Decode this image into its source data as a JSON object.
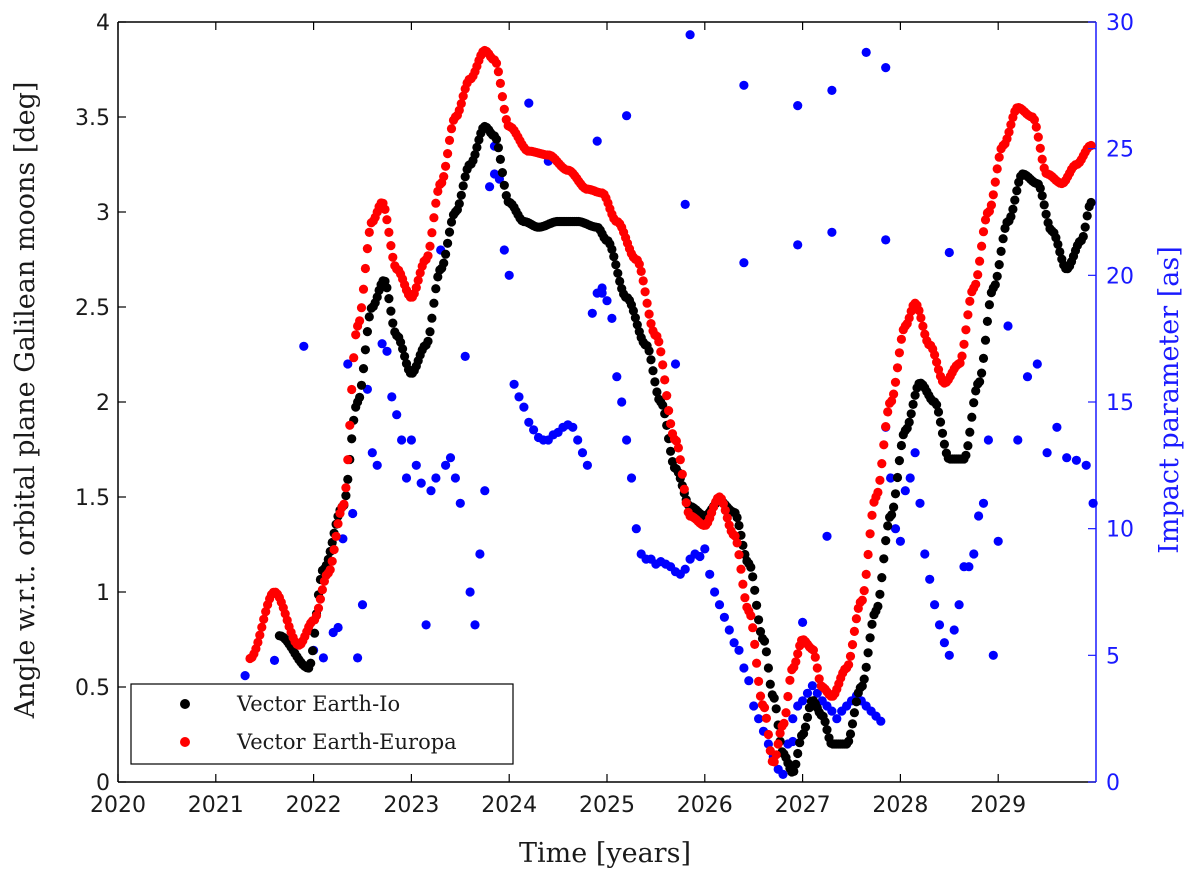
{
  "chart_data": {
    "type": "scatter",
    "xlabel": "Time [years]",
    "ylabel_left": "Angle w.r.t. orbital plane Galilean moons [deg]",
    "ylabel_right": "Impact parameter [as]",
    "xlim": [
      2020,
      2030
    ],
    "ylim_left": [
      0,
      4
    ],
    "ylim_right": [
      0,
      30
    ],
    "x_ticks": [
      "2020",
      "2021",
      "2022",
      "2023",
      "2024",
      "2025",
      "2026",
      "2027",
      "2028",
      "2029"
    ],
    "y_ticks_left": [
      "0",
      "0.5",
      "1",
      "1.5",
      "2",
      "2.5",
      "3",
      "3.5",
      "4"
    ],
    "y_ticks_right": [
      "0",
      "5",
      "10",
      "15",
      "20",
      "25",
      "30"
    ],
    "grid": false,
    "legend_position": "bottom-left",
    "colors": {
      "io": "#000000",
      "europa": "#ff0000",
      "impact": "#0000ff",
      "right_axis": "#1a1aff"
    },
    "series": [
      {
        "name": "Vector Earth-Io",
        "axis": "left",
        "color": "#000000",
        "curve_x": [
          2021.65,
          2021.95,
          2022.1,
          2022.3,
          2022.45,
          2022.6,
          2022.72,
          2022.85,
          2023.0,
          2023.15,
          2023.3,
          2023.45,
          2023.6,
          2023.75,
          2023.85,
          2024.0,
          2024.15,
          2024.3,
          2024.5,
          2024.7,
          2024.9,
          2025.0,
          2025.2,
          2025.4,
          2025.55,
          2025.7,
          2025.85,
          2026.0,
          2026.15,
          2026.3,
          2026.45,
          2026.6,
          2026.7,
          2026.8,
          2026.9,
          2027.0,
          2027.1,
          2027.2,
          2027.3,
          2027.45,
          2027.6,
          2027.75,
          2027.9,
          2028.05,
          2028.2,
          2028.35,
          2028.5,
          2028.65,
          2028.8,
          2028.95,
          2029.1,
          2029.25,
          2029.4,
          2029.55,
          2029.7,
          2029.85,
          2029.95
        ],
        "curve_y": [
          0.77,
          0.6,
          1.12,
          1.45,
          2.0,
          2.5,
          2.64,
          2.35,
          2.15,
          2.3,
          2.7,
          3.0,
          3.25,
          3.45,
          3.4,
          3.05,
          2.95,
          2.92,
          2.95,
          2.95,
          2.92,
          2.85,
          2.55,
          2.3,
          2.0,
          1.65,
          1.45,
          1.4,
          1.48,
          1.42,
          1.15,
          0.75,
          0.45,
          0.15,
          0.05,
          0.25,
          0.43,
          0.35,
          0.2,
          0.2,
          0.5,
          0.9,
          1.4,
          1.85,
          2.1,
          2.0,
          1.7,
          1.7,
          2.1,
          2.6,
          2.95,
          3.2,
          3.15,
          2.9,
          2.7,
          2.85,
          3.05
        ],
        "sample_step": 0.02
      },
      {
        "name": "Vector Earth-Europa",
        "axis": "left",
        "color": "#ff0000",
        "curve_x": [
          2021.35,
          2021.6,
          2021.85,
          2022.0,
          2022.15,
          2022.3,
          2022.45,
          2022.6,
          2022.7,
          2022.85,
          2023.0,
          2023.15,
          2023.3,
          2023.45,
          2023.6,
          2023.75,
          2023.85,
          2024.0,
          2024.2,
          2024.4,
          2024.6,
          2024.8,
          2024.95,
          2025.1,
          2025.3,
          2025.5,
          2025.7,
          2025.85,
          2026.0,
          2026.15,
          2026.3,
          2026.45,
          2026.6,
          2026.7,
          2026.8,
          2026.9,
          2027.0,
          2027.1,
          2027.2,
          2027.3,
          2027.45,
          2027.6,
          2027.75,
          2027.9,
          2028.05,
          2028.15,
          2028.3,
          2028.45,
          2028.6,
          2028.75,
          2028.9,
          2029.05,
          2029.2,
          2029.35,
          2029.5,
          2029.65,
          2029.8,
          2029.95
        ],
        "curve_y": [
          0.65,
          1.0,
          0.72,
          0.85,
          1.1,
          1.45,
          2.4,
          2.95,
          3.05,
          2.7,
          2.55,
          2.75,
          3.15,
          3.5,
          3.7,
          3.85,
          3.8,
          3.45,
          3.32,
          3.3,
          3.22,
          3.12,
          3.1,
          2.95,
          2.75,
          2.35,
          1.8,
          1.4,
          1.35,
          1.5,
          1.3,
          0.9,
          0.4,
          0.1,
          0.3,
          0.6,
          0.75,
          0.7,
          0.5,
          0.45,
          0.6,
          0.95,
          1.5,
          2.0,
          2.4,
          2.52,
          2.3,
          2.1,
          2.2,
          2.6,
          3.0,
          3.35,
          3.55,
          3.5,
          3.2,
          3.15,
          3.25,
          3.35
        ],
        "sample_step": 0.02
      },
      {
        "name": "Impact parameter",
        "axis": "right",
        "color": "#0000ff",
        "points": [
          [
            2021.3,
            4.2
          ],
          [
            2021.6,
            4.8
          ],
          [
            2021.9,
            17.2
          ],
          [
            2022.0,
            5.2
          ],
          [
            2022.1,
            4.9
          ],
          [
            2022.2,
            5.9
          ],
          [
            2022.25,
            6.1
          ],
          [
            2022.3,
            9.6
          ],
          [
            2022.35,
            16.5
          ],
          [
            2022.4,
            10.6
          ],
          [
            2022.45,
            4.9
          ],
          [
            2022.5,
            7.0
          ],
          [
            2022.55,
            15.5
          ],
          [
            2022.6,
            13.0
          ],
          [
            2022.65,
            12.5
          ],
          [
            2022.7,
            17.3
          ],
          [
            2022.75,
            17.0
          ],
          [
            2022.8,
            15.2
          ],
          [
            2022.85,
            14.5
          ],
          [
            2022.9,
            13.5
          ],
          [
            2022.95,
            12.0
          ],
          [
            2023.0,
            13.5
          ],
          [
            2023.05,
            12.5
          ],
          [
            2023.1,
            11.8
          ],
          [
            2023.15,
            6.2
          ],
          [
            2023.2,
            11.5
          ],
          [
            2023.25,
            12.0
          ],
          [
            2023.3,
            21.0
          ],
          [
            2023.35,
            12.5
          ],
          [
            2023.4,
            12.8
          ],
          [
            2023.45,
            12.0
          ],
          [
            2023.5,
            11.0
          ],
          [
            2023.55,
            16.8
          ],
          [
            2023.6,
            7.5
          ],
          [
            2023.65,
            6.2
          ],
          [
            2023.7,
            9.0
          ],
          [
            2023.75,
            11.5
          ],
          [
            2023.8,
            23.5
          ],
          [
            2023.85,
            24.0
          ],
          [
            2023.9,
            23.8
          ],
          [
            2023.95,
            21.0
          ],
          [
            2024.0,
            20.0
          ],
          [
            2024.05,
            15.7
          ],
          [
            2024.1,
            15.2
          ],
          [
            2024.15,
            14.8
          ],
          [
            2024.2,
            14.2
          ],
          [
            2024.25,
            13.9
          ],
          [
            2024.3,
            13.6
          ],
          [
            2024.35,
            13.5
          ],
          [
            2024.4,
            13.5
          ],
          [
            2024.45,
            13.7
          ],
          [
            2024.5,
            13.8
          ],
          [
            2024.55,
            14.0
          ],
          [
            2024.6,
            14.1
          ],
          [
            2024.65,
            14.0
          ],
          [
            2024.7,
            13.5
          ],
          [
            2024.75,
            13.0
          ],
          [
            2024.8,
            12.5
          ],
          [
            2024.85,
            18.5
          ],
          [
            2024.9,
            19.3
          ],
          [
            2024.95,
            19.5
          ],
          [
            2025.0,
            19.0
          ],
          [
            2025.05,
            18.3
          ],
          [
            2025.1,
            16.0
          ],
          [
            2025.15,
            15.0
          ],
          [
            2025.2,
            13.5
          ],
          [
            2025.25,
            12.0
          ],
          [
            2025.3,
            10.0
          ],
          [
            2025.35,
            9.0
          ],
          [
            2025.4,
            8.8
          ],
          [
            2025.45,
            8.8
          ],
          [
            2025.5,
            8.6
          ],
          [
            2025.55,
            8.7
          ],
          [
            2025.6,
            8.6
          ],
          [
            2025.65,
            8.5
          ],
          [
            2025.7,
            8.3
          ],
          [
            2025.75,
            8.2
          ],
          [
            2025.8,
            8.4
          ],
          [
            2025.85,
            8.8
          ],
          [
            2025.9,
            9.0
          ],
          [
            2025.95,
            8.9
          ],
          [
            2026.0,
            9.2
          ],
          [
            2026.05,
            8.2
          ],
          [
            2026.1,
            7.5
          ],
          [
            2026.15,
            7.0
          ],
          [
            2026.2,
            6.5
          ],
          [
            2026.25,
            6.0
          ],
          [
            2026.3,
            5.5
          ],
          [
            2026.35,
            5.2
          ],
          [
            2026.4,
            4.5
          ],
          [
            2026.45,
            4.0
          ],
          [
            2026.5,
            3.0
          ],
          [
            2026.55,
            2.5
          ],
          [
            2026.6,
            2.0
          ],
          [
            2026.65,
            1.5
          ],
          [
            2026.7,
            1.0
          ],
          [
            2026.75,
            0.5
          ],
          [
            2026.8,
            0.3
          ],
          [
            2026.85,
            1.5
          ],
          [
            2026.9,
            2.5
          ],
          [
            2026.95,
            3.0
          ],
          [
            2027.0,
            3.2
          ],
          [
            2027.05,
            3.5
          ],
          [
            2027.1,
            3.8
          ],
          [
            2027.15,
            3.5
          ],
          [
            2027.2,
            3.2
          ],
          [
            2027.25,
            3.0
          ],
          [
            2027.3,
            2.8
          ],
          [
            2027.35,
            2.5
          ],
          [
            2027.4,
            2.8
          ],
          [
            2027.45,
            3.0
          ],
          [
            2027.5,
            3.2
          ],
          [
            2027.55,
            3.4
          ],
          [
            2027.6,
            3.2
          ],
          [
            2027.65,
            3.0
          ],
          [
            2027.7,
            2.8
          ],
          [
            2027.75,
            2.6
          ],
          [
            2027.8,
            2.4
          ],
          [
            2027.85,
            14.0
          ],
          [
            2027.9,
            12.0
          ],
          [
            2027.95,
            10.0
          ],
          [
            2028.0,
            9.5
          ],
          [
            2028.05,
            11.5
          ],
          [
            2028.1,
            12.0
          ],
          [
            2028.15,
            13.0
          ],
          [
            2028.2,
            11.0
          ],
          [
            2028.25,
            9.0
          ],
          [
            2028.3,
            8.0
          ],
          [
            2028.35,
            7.0
          ],
          [
            2028.4,
            6.2
          ],
          [
            2028.45,
            5.5
          ],
          [
            2028.5,
            5.0
          ],
          [
            2028.55,
            6.0
          ],
          [
            2028.6,
            7.0
          ],
          [
            2028.65,
            8.5
          ],
          [
            2028.7,
            8.5
          ],
          [
            2028.75,
            9.0
          ],
          [
            2028.8,
            10.5
          ],
          [
            2028.85,
            11.0
          ],
          [
            2028.9,
            13.5
          ],
          [
            2028.95,
            5.0
          ],
          [
            2029.0,
            9.5
          ],
          [
            2029.1,
            18.0
          ],
          [
            2029.2,
            13.5
          ],
          [
            2029.3,
            16.0
          ],
          [
            2029.4,
            16.5
          ],
          [
            2029.5,
            13.0
          ],
          [
            2029.6,
            14.0
          ],
          [
            2029.7,
            12.8
          ],
          [
            2029.8,
            12.7
          ],
          [
            2029.9,
            12.5
          ],
          [
            2029.97,
            11.0
          ],
          [
            2025.85,
            29.5
          ],
          [
            2026.4,
            27.5
          ],
          [
            2026.95,
            26.7
          ],
          [
            2027.3,
            27.3
          ],
          [
            2027.65,
            28.8
          ],
          [
            2027.85,
            28.2
          ],
          [
            2024.2,
            26.8
          ],
          [
            2024.9,
            25.3
          ],
          [
            2025.2,
            26.3
          ],
          [
            2023.85,
            25.1
          ],
          [
            2024.4,
            24.5
          ],
          [
            2025.8,
            22.8
          ],
          [
            2026.4,
            20.5
          ],
          [
            2026.95,
            21.2
          ],
          [
            2027.3,
            21.7
          ],
          [
            2027.85,
            21.4
          ],
          [
            2028.5,
            20.9
          ],
          [
            2024.95,
            19.3
          ],
          [
            2025.7,
            16.5
          ],
          [
            2027.25,
            9.7
          ],
          [
            2027.0,
            6.3
          ],
          [
            2026.9,
            1.6
          ]
        ]
      }
    ]
  },
  "legend": {
    "io_label": "Vector Earth-Io",
    "europa_label": "Vector Earth-Europa"
  }
}
